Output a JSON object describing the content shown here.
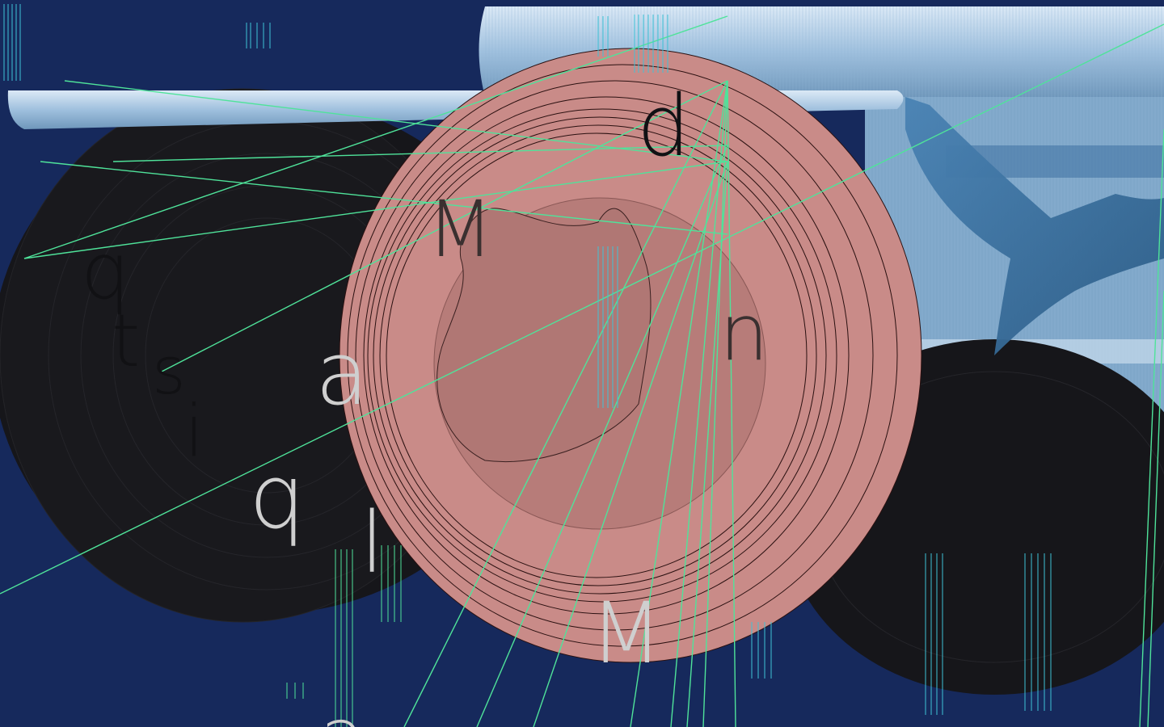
{
  "colors": {
    "background": "#16295c",
    "disc_black": "#16161a",
    "disc_pink": "#c98b88",
    "disc_pink_inner": "#b77c79",
    "ribbon_light": "#b9d3ea",
    "ribbon_mid": "#6f97bb",
    "line_green": "#4fe39a",
    "hatch_cyan": "#3fc3d6"
  },
  "icons": [
    "shark-fin-shape",
    "blob-shape"
  ],
  "glyphs": {
    "d_top": "d",
    "m_center": "M",
    "n_right": "n",
    "q_left": "q",
    "t_left": "t",
    "s_left": "s",
    "i_left": "i",
    "a_mid": "a",
    "q_low": "q",
    "l_low": "l",
    "m_bottom": "M",
    "partial_bottom": "a"
  }
}
